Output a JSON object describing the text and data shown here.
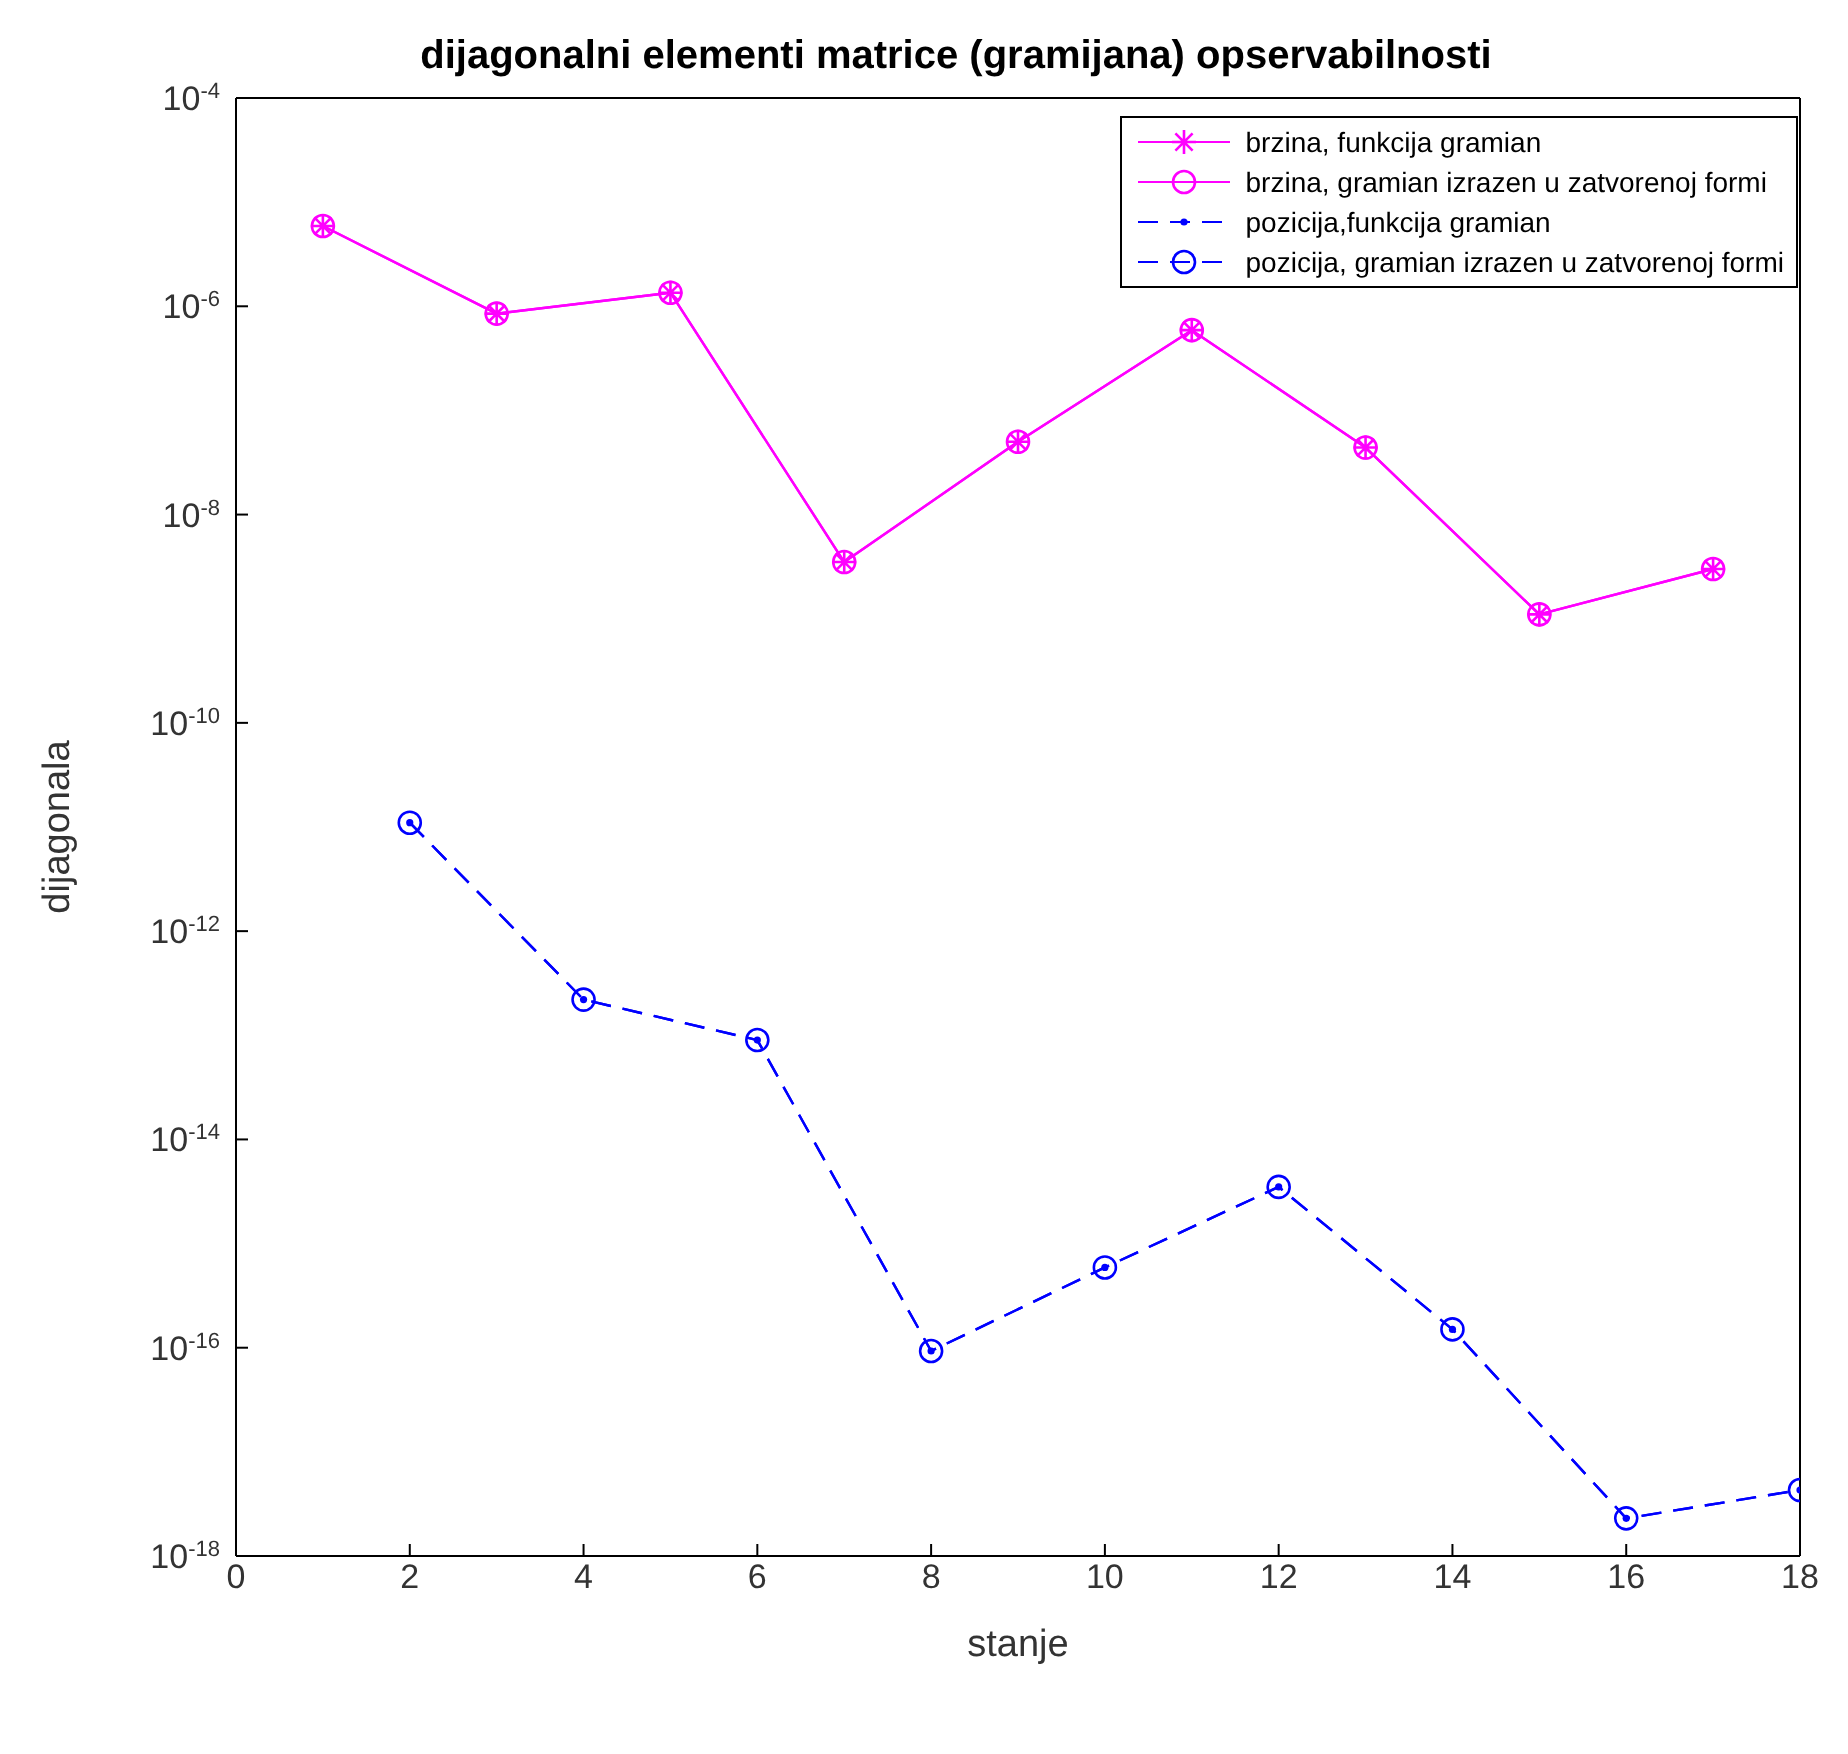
{
  "chart_data": {
    "type": "line",
    "title": "dijagonalni elementi matrice (gramijana) opservabilnosti",
    "xlabel": "stanje",
    "ylabel": "dijagonala",
    "log": "y",
    "xlim": [
      0,
      18
    ],
    "xticks": [
      0,
      2,
      4,
      6,
      8,
      10,
      12,
      14,
      16,
      18
    ],
    "ylim": [
      1e-18,
      0.0001
    ],
    "yticks": [
      {
        "value": 1e-18,
        "label": "10$^{-18}$"
      },
      {
        "value": 1e-16,
        "label": "10$^{-16}$"
      },
      {
        "value": 1e-14,
        "label": "10$^{-14}$"
      },
      {
        "value": 1e-12,
        "label": "10$^{-12}$"
      },
      {
        "value": 1e-10,
        "label": "10$^{-10}$"
      },
      {
        "value": 1e-08,
        "label": "10$^{-8}$"
      },
      {
        "value": 1e-06,
        "label": "10$^{-6}$"
      },
      {
        "value": 0.0001,
        "label": "10$^{-4}$"
      }
    ],
    "legend": "top right",
    "grid": false,
    "series": [
      {
        "name": "brzina, funkcija gramian",
        "color": "#ff00ff",
        "marker": "cross",
        "line_style": "solid",
        "x": [
          1,
          3,
          5,
          7,
          9,
          11,
          13,
          15,
          17
        ],
        "values": [
          5.9e-06,
          8.5e-07,
          1.35e-06,
          3.5e-09,
          5e-08,
          5.9e-07,
          4.4e-08,
          1.1e-09,
          3e-09
        ]
      },
      {
        "name": "brzina, gramian izrazen u zatvorenoj formi",
        "color": "#ff00ff",
        "marker": "circle",
        "line_style": "solid",
        "x": [
          1,
          3,
          5,
          7,
          9,
          11,
          13,
          15,
          17
        ],
        "values": [
          5.9e-06,
          8.5e-07,
          1.35e-06,
          3.5e-09,
          5e-08,
          5.9e-07,
          4.4e-08,
          1.1e-09,
          3e-09
        ]
      },
      {
        "name": "pozicija,funkcija gramian",
        "color": "#0000ff",
        "marker": "dot",
        "line_style": "dashed",
        "x": [
          2,
          4,
          6,
          8,
          10,
          12,
          14,
          16,
          18
        ],
        "values": [
          1.1e-11,
          2.2e-13,
          9e-14,
          9.3e-17,
          5.9e-16,
          3.5e-15,
          1.5e-16,
          2.3e-18,
          4.3e-18
        ]
      },
      {
        "name": "pozicija, gramian izrazen u zatvorenoj formi",
        "color": "#0000ff",
        "marker": "circle",
        "line_style": "dashed",
        "x": [
          2,
          4,
          6,
          8,
          10,
          12,
          14,
          16,
          18
        ],
        "values": [
          1.1e-11,
          2.2e-13,
          9e-14,
          9.3e-17,
          5.9e-16,
          3.5e-15,
          1.5e-16,
          2.3e-18,
          4.3e-18
        ]
      }
    ]
  }
}
